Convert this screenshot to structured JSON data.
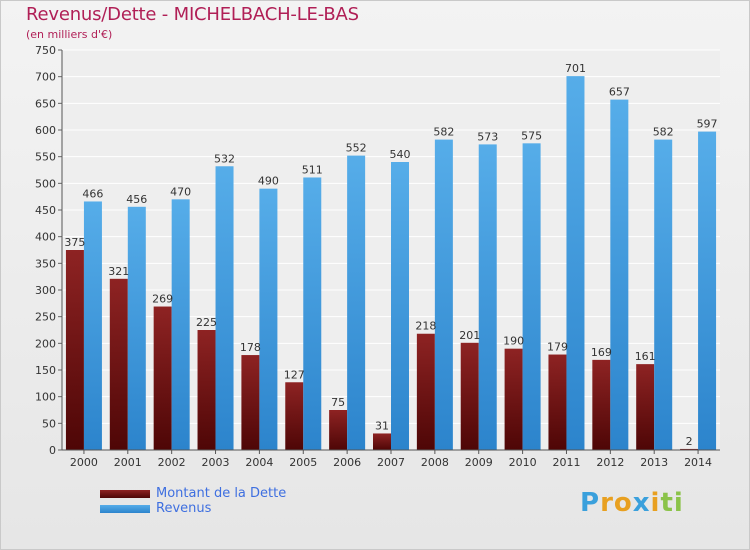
{
  "colors": {
    "debt": "#8b1c1c",
    "debt_dark": "#5a0a0a",
    "revenue": "#4aa3e6",
    "revenue_dark": "#2f86cf",
    "title": "#b01f56",
    "legend_text": "#3e6fe0"
  },
  "chart_data": {
    "type": "bar",
    "title": "Revenus/Dette - MICHELBACH-LE-BAS",
    "subtitle": "(en milliers d'€)",
    "categories": [
      "2000",
      "2001",
      "2002",
      "2003",
      "2004",
      "2005",
      "2006",
      "2007",
      "2008",
      "2009",
      "2010",
      "2011",
      "2012",
      "2013",
      "2014"
    ],
    "series": [
      {
        "name": "Montant de la Dette",
        "values": [
          375,
          321,
          269,
          225,
          178,
          127,
          75,
          31,
          218,
          201,
          190,
          179,
          169,
          161,
          2
        ]
      },
      {
        "name": "Revenus",
        "values": [
          466,
          456,
          470,
          532,
          490,
          511,
          552,
          540,
          582,
          573,
          575,
          701,
          657,
          582,
          597
        ]
      }
    ],
    "ylim": [
      0,
      750
    ],
    "yticks": [
      0,
      50,
      100,
      150,
      200,
      250,
      300,
      350,
      400,
      450,
      500,
      550,
      600,
      650,
      700,
      750
    ],
    "grid": true,
    "legend_position": "bottom-left"
  },
  "legend": {
    "debt_label": "Montant de la Dette",
    "revenue_label": "Revenus"
  },
  "logo": {
    "letters": [
      "P",
      "r",
      "o",
      "x",
      "i",
      "t",
      "i"
    ],
    "colors": [
      "#3aa0dc",
      "#e8a020",
      "#e8a020",
      "#3aa0dc",
      "#e8a020",
      "#8bc34a",
      "#8bc34a"
    ]
  }
}
